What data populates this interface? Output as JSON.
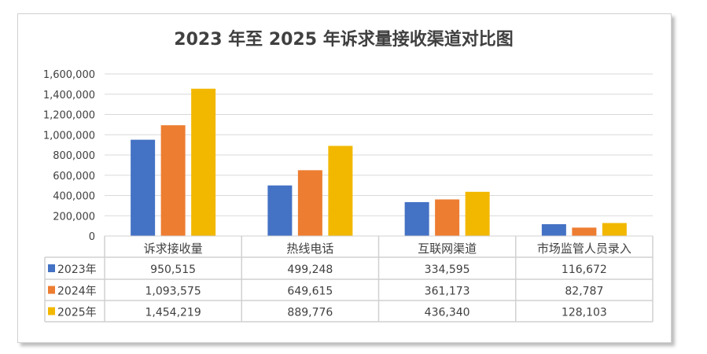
{
  "chart_data": {
    "type": "bar",
    "title": "2023 年至 2025 年诉求量接收渠道对比图",
    "categories": [
      "诉求接收量",
      "热线电话",
      "互联网渠道",
      "市场监管人员录入"
    ],
    "series": [
      {
        "name": "2023年",
        "color": "#4472C4",
        "values": [
          950515,
          499248,
          334595,
          116672
        ],
        "labels": [
          "950,515",
          "499,248",
          "334,595",
          "116,672"
        ]
      },
      {
        "name": "2024年",
        "color": "#ED7D31",
        "values": [
          1093575,
          649615,
          361173,
          82787
        ],
        "labels": [
          "1,093,575",
          "649,615",
          "361,173",
          "82,787"
        ]
      },
      {
        "name": "2025年",
        "color": "#F2B800",
        "values": [
          1454219,
          889776,
          436340,
          128103
        ],
        "labels": [
          "1,454,219",
          "889,776",
          "436,340",
          "128,103"
        ]
      }
    ],
    "ylim": [
      0,
      1600000
    ],
    "yticks": [
      0,
      200000,
      400000,
      600000,
      800000,
      1000000,
      1200000,
      1400000,
      1600000
    ],
    "ytick_labels": [
      "0",
      "200,000",
      "400,000",
      "600,000",
      "800,000",
      "1,000,000",
      "1,200,000",
      "1,400,000",
      "1,600,000"
    ],
    "xlabel": "",
    "ylabel": "",
    "grid": true,
    "legend": "data-table"
  }
}
